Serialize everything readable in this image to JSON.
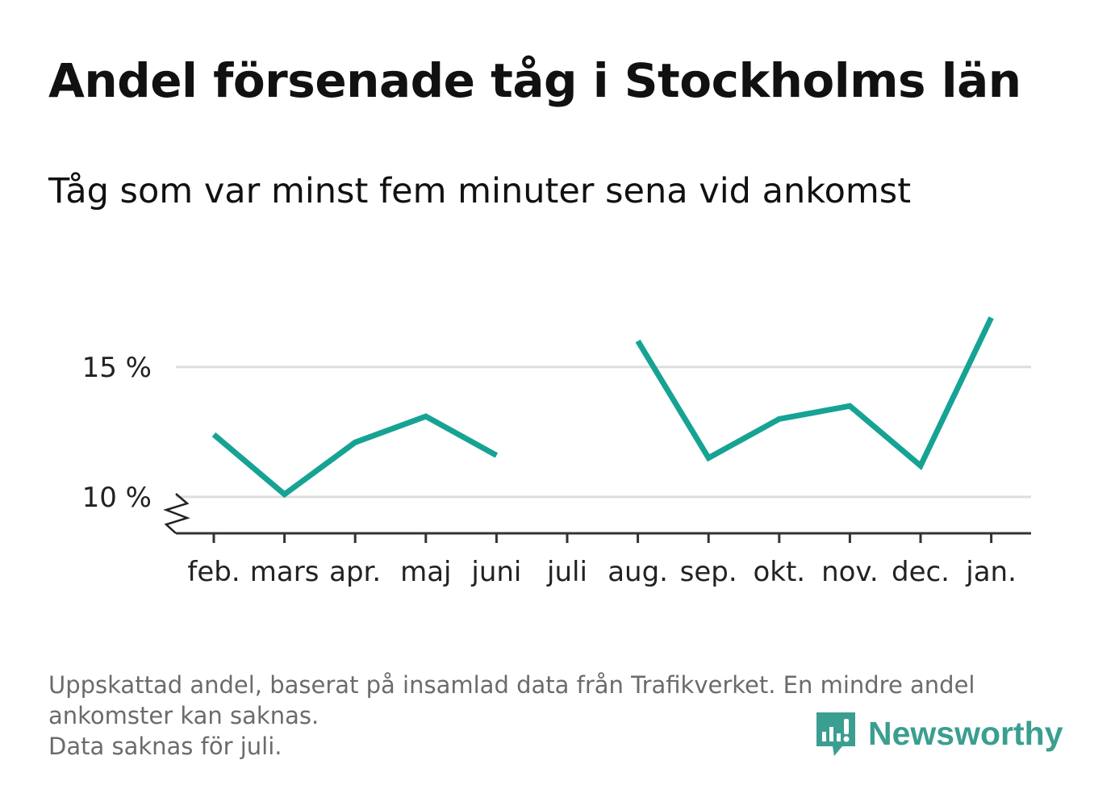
{
  "title": "Andel försenade tåg i Stockholms län",
  "subtitle": "Tåg som var minst fem minuter sena vid ankomst",
  "footnote": {
    "line1": "Uppskattad andel, baserat på insamlad data från Trafikverket. En mindre andel",
    "line2": "ankomster kan saknas.",
    "line3": "Data saknas för juli."
  },
  "logo": {
    "text": "Newsworthy",
    "icon": "newsworthy-chart-bubble-icon",
    "color": "#3a9e90"
  },
  "chart_data": {
    "type": "line",
    "categories": [
      "feb.",
      "mars",
      "apr.",
      "maj",
      "juni",
      "juli",
      "aug.",
      "sep.",
      "okt.",
      "nov.",
      "dec.",
      "jan."
    ],
    "series": [
      {
        "values": [
          12.4,
          10.1,
          12.1,
          13.1,
          11.6,
          null,
          16.0,
          11.5,
          13.0,
          13.5,
          11.2,
          16.9
        ]
      }
    ],
    "y_ticks": [
      10,
      15
    ],
    "y_tick_labels": [
      "10 %",
      "15 %"
    ],
    "ylim": [
      8.6,
      17.5
    ],
    "y_axis_break": true,
    "grid": true,
    "line_color": "#16a394",
    "grid_color": "#dddddd"
  }
}
